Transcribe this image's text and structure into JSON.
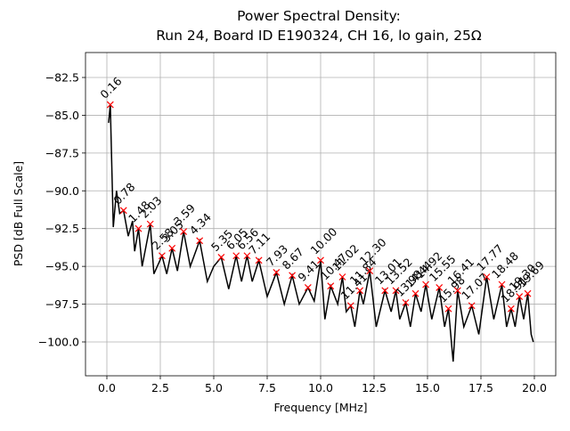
{
  "chart_data": {
    "type": "line",
    "title": "Power Spectral Density:",
    "subtitle": "Run 24, Board ID E190324, CH 16, lo gain, 25Ω",
    "x_label": "Frequency [MHz]",
    "y_label": "PSD [dB Full Scale]",
    "xlim": [
      -1,
      21
    ],
    "ylim": [
      -102.24,
      -80.85
    ],
    "xticks": [
      {
        "value": 0,
        "label": "0.0"
      },
      2.5,
      {
        "value": 5,
        "label": "5.0"
      },
      7.5,
      {
        "value": 10,
        "label": "10.0"
      },
      12.5,
      {
        "value": 15,
        "label": "15.0"
      },
      17.5,
      {
        "value": 20,
        "label": "20.0"
      }
    ],
    "yticks": [
      {
        "value": -100,
        "label": "−100.0"
      },
      {
        "value": -97.5,
        "label": "−97.5"
      },
      {
        "value": -95,
        "label": "−95.0"
      },
      {
        "value": -92.5,
        "label": "−92.5"
      },
      {
        "value": -90,
        "label": "−90.0"
      },
      {
        "value": -87.5,
        "label": "−87.5"
      },
      {
        "value": -85,
        "label": "−85.0"
      },
      {
        "value": -82.5,
        "label": "−82.5"
      }
    ],
    "grid": true,
    "series": [
      {
        "color": "#000000",
        "x": [
          0.08,
          0.16,
          0.3,
          0.45,
          0.6,
          0.78,
          1.0,
          1.2,
          1.3,
          1.48,
          1.65,
          2.03,
          2.2,
          2.58,
          2.8,
          3.05,
          3.3,
          3.59,
          3.9,
          4.34,
          4.7,
          5.0,
          5.35,
          5.7,
          6.05,
          6.3,
          6.56,
          6.8,
          7.11,
          7.5,
          7.93,
          8.3,
          8.67,
          9.0,
          9.41,
          9.7,
          10.0,
          10.2,
          10.47,
          10.8,
          11.02,
          11.2,
          11.41,
          11.6,
          11.84,
          12.0,
          12.3,
          12.6,
          13.01,
          13.3,
          13.52,
          13.7,
          13.98,
          14.2,
          14.44,
          14.7,
          14.92,
          15.2,
          15.55,
          15.8,
          15.98,
          16.2,
          16.41,
          16.7,
          17.07,
          17.4,
          17.77,
          18.1,
          18.48,
          18.7,
          18.91,
          19.1,
          19.3,
          19.5,
          19.69,
          19.85,
          19.95
        ],
        "values": [
          -85.5,
          -84.3,
          -92.4,
          -90.0,
          -91.5,
          -91.3,
          -93.0,
          -92.0,
          -94.0,
          -92.5,
          -95.0,
          -92.2,
          -95.5,
          -94.3,
          -95.5,
          -93.8,
          -95.3,
          -92.7,
          -95.0,
          -93.3,
          -96.0,
          -95.0,
          -94.4,
          -96.5,
          -94.3,
          -96.0,
          -94.3,
          -96.0,
          -94.6,
          -97.0,
          -95.4,
          -97.5,
          -95.6,
          -97.5,
          -96.4,
          -97.3,
          -94.6,
          -98.5,
          -96.3,
          -97.5,
          -95.7,
          -98.0,
          -97.6,
          -99.0,
          -96.6,
          -97.5,
          -95.3,
          -99.0,
          -96.6,
          -98.0,
          -96.6,
          -98.5,
          -97.4,
          -99.0,
          -96.8,
          -98.0,
          -96.2,
          -98.5,
          -96.4,
          -99.0,
          -97.8,
          -101.3,
          -96.6,
          -99.0,
          -97.6,
          -99.5,
          -95.7,
          -98.5,
          -96.2,
          -99.0,
          -97.8,
          -99.0,
          -97.0,
          -98.5,
          -96.8,
          -99.5,
          -100.0
        ]
      }
    ],
    "peaks": {
      "color": "#ff0000",
      "x": [
        0.16,
        0.78,
        1.48,
        2.03,
        2.58,
        3.05,
        3.59,
        4.34,
        5.35,
        6.05,
        6.56,
        7.11,
        7.93,
        8.67,
        9.41,
        10.0,
        10.47,
        11.02,
        11.41,
        11.84,
        12.3,
        13.01,
        13.52,
        13.98,
        14.44,
        14.92,
        15.55,
        15.98,
        16.41,
        17.07,
        17.77,
        18.48,
        18.91,
        19.3,
        19.69
      ],
      "values": [
        -84.3,
        -91.3,
        -92.5,
        -92.2,
        -94.3,
        -93.8,
        -92.7,
        -93.3,
        -94.4,
        -94.3,
        -94.3,
        -94.6,
        -95.4,
        -95.6,
        -96.4,
        -94.6,
        -96.3,
        -95.7,
        -97.6,
        -96.6,
        -95.3,
        -96.6,
        -96.6,
        -97.4,
        -96.8,
        -96.2,
        -96.4,
        -97.8,
        -96.6,
        -97.6,
        -95.7,
        -96.2,
        -97.8,
        -97.0,
        -96.8
      ],
      "x_labels": [
        "0.16",
        "0.78",
        "1.48",
        "2.03",
        "2.58",
        "3.05",
        "3.59",
        "4.34",
        "5.35",
        "6.05",
        "6.56",
        "7.11",
        "7.93",
        "8.67",
        "9.41",
        "10.00",
        "10.47",
        "11.02",
        "11.41",
        "11.84",
        "12.30",
        "13.01",
        "13.52",
        "13.98",
        "14.44",
        "14.92",
        "15.55",
        "15.98",
        "16.41",
        "17.07",
        "17.77",
        "18.48",
        "18.91",
        "19.30",
        "19.69"
      ]
    }
  }
}
